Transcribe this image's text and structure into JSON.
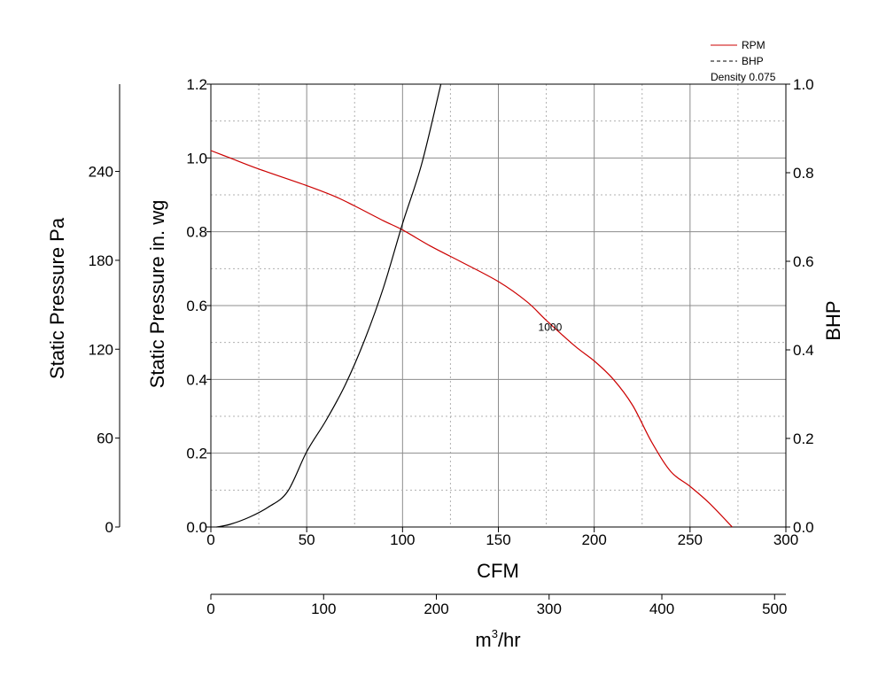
{
  "chart_data": {
    "type": "line",
    "xlabel": "CFM",
    "x2label": "m",
    "x2label_sup": "3",
    "x2label_suffix": "/hr",
    "ylabel": "Static Pressure in. wg",
    "y2label": "Static Pressure Pa",
    "y3label": "BHP",
    "xlim": [
      0,
      300
    ],
    "x2lim": [
      0,
      510
    ],
    "ylim": [
      0,
      1.2
    ],
    "y2lim": [
      0,
      298.9
    ],
    "y3lim": [
      0,
      1.0
    ],
    "x_ticks": [
      "0",
      "50",
      "100",
      "150",
      "200",
      "250",
      "300"
    ],
    "x_tick_values": [
      0,
      50,
      100,
      150,
      200,
      250,
      300
    ],
    "x2_ticks": [
      "0",
      "100",
      "200",
      "300",
      "400",
      "500"
    ],
    "x2_tick_values": [
      0,
      100,
      200,
      300,
      400,
      500
    ],
    "y_ticks": [
      "0.0",
      "0.2",
      "0.4",
      "0.6",
      "0.8",
      "1.0",
      "1.2"
    ],
    "y_tick_values": [
      0,
      0.2,
      0.4,
      0.6,
      0.8,
      1.0,
      1.2
    ],
    "y2_ticks": [
      "0",
      "60",
      "120",
      "180",
      "240"
    ],
    "y2_tick_values": [
      0,
      60,
      120,
      180,
      240
    ],
    "y3_ticks": [
      "0.0",
      "0.2",
      "0.4",
      "0.6",
      "0.8",
      "1.0"
    ],
    "y3_tick_values": [
      0,
      0.2,
      0.4,
      0.6,
      0.8,
      1.0
    ],
    "grid": true,
    "legend_position": "top-right",
    "legend": [
      {
        "label": "RPM",
        "color": "#cc0000",
        "dash": "solid"
      },
      {
        "label": "BHP",
        "color": "#000000",
        "dash": "dashed"
      }
    ],
    "legend_note": "Density 0.075",
    "series": [
      {
        "name": "RPM",
        "axis": "left",
        "color": "#cc0000",
        "label": "1000",
        "label_x": 177,
        "label_y": 0.532,
        "x": [
          0,
          10,
          25,
          50,
          65,
          75,
          90,
          100,
          115,
          130,
          150,
          165,
          175,
          190,
          200,
          210,
          220,
          230,
          240,
          250,
          260,
          272
        ],
        "y": [
          1.02,
          1.0,
          0.97,
          0.925,
          0.895,
          0.87,
          0.83,
          0.805,
          0.76,
          0.72,
          0.665,
          0.61,
          0.56,
          0.49,
          0.45,
          0.4,
          0.33,
          0.23,
          0.15,
          0.11,
          0.065,
          0.0
        ]
      },
      {
        "name": "BHP",
        "axis": "right",
        "color": "#000000",
        "x": [
          3,
          10,
          20,
          30,
          40,
          50,
          60,
          70,
          80,
          90,
          100,
          110,
          120
        ],
        "y": [
          0.0,
          0.006,
          0.022,
          0.045,
          0.08,
          0.17,
          0.24,
          0.32,
          0.42,
          0.54,
          0.685,
          0.82,
          1.0
        ]
      }
    ]
  }
}
